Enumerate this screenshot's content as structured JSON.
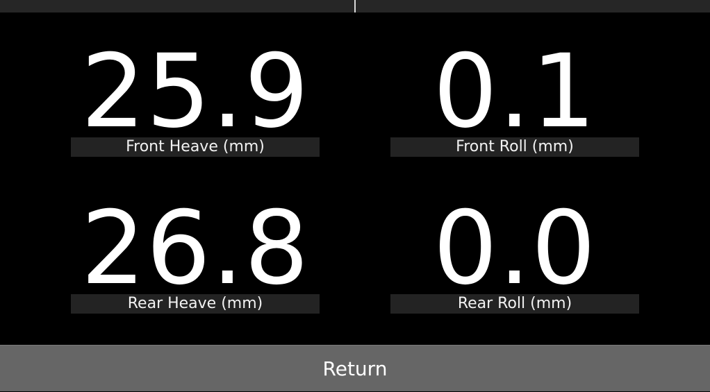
{
  "metrics": {
    "front_heave": {
      "value": "25.9",
      "label": "Front Heave (mm)"
    },
    "front_roll": {
      "value": "0.1",
      "label": "Front Roll (mm)"
    },
    "rear_heave": {
      "value": "26.8",
      "label": "Rear Heave (mm)"
    },
    "rear_roll": {
      "value": "0.0",
      "label": "Rear Roll (mm)"
    }
  },
  "footer": {
    "return_label": "Return"
  },
  "colors": {
    "background": "#000000",
    "text": "#ffffff",
    "label_strip": "#232323",
    "button": "#666666",
    "top_bar": "#262626"
  }
}
